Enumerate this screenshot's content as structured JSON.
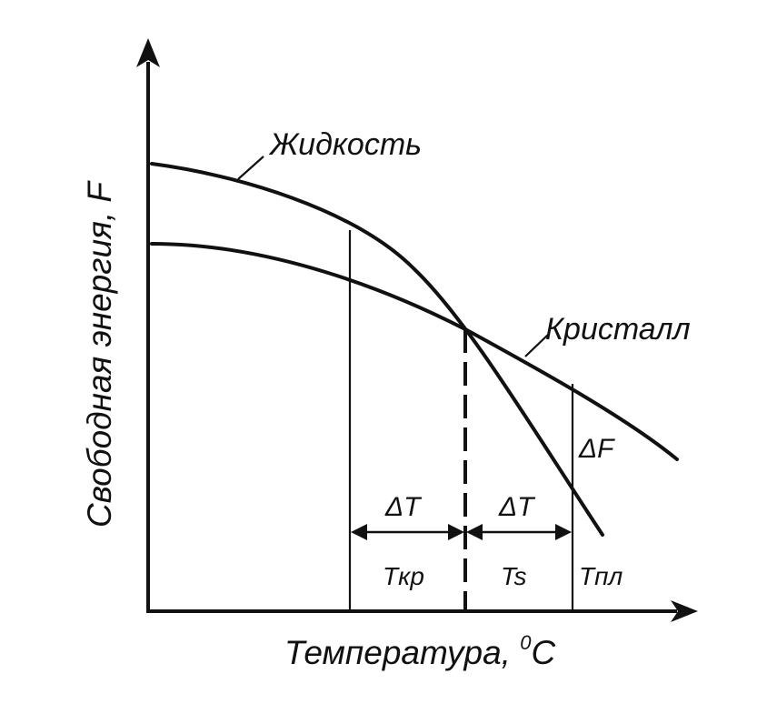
{
  "axes": {
    "y_label": "Свободная энергия, F",
    "x_label_main": "Температура, ",
    "x_label_sup": "0",
    "x_label_unit": "C"
  },
  "curves": {
    "liquid_label": "Жидкость",
    "crystal_label": "Кристалл"
  },
  "annotations": {
    "delta_f": "ΔF",
    "delta_t_left": "ΔT",
    "delta_t_right": "ΔT",
    "t_kr": "Tкр",
    "t_s": "Ts",
    "t_pl": "Tпл"
  }
}
